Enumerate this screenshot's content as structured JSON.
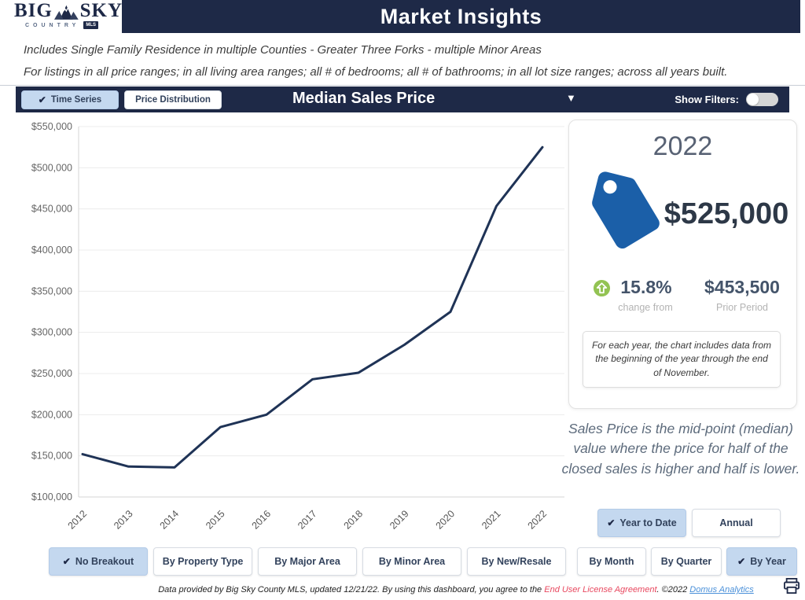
{
  "header": {
    "title": "Market Insights",
    "logo_big": "BIG",
    "logo_sky": "SKY",
    "logo_country": "COUNTRY",
    "logo_mls": "MLS"
  },
  "subtitle": {
    "line1": "Includes Single Family Residence in multiple Counties - Greater Three Forks - multiple Minor Areas",
    "line2": "For listings in all price ranges; in all living area ranges; all # of bedrooms; all # of bathrooms; in all lot size ranges; across all years built."
  },
  "toolbar": {
    "tabs": [
      {
        "label": "Time Series",
        "selected": true
      },
      {
        "label": "Price Distribution",
        "selected": false
      }
    ],
    "metric_title": "Median Sales Price",
    "show_filters_label": "Show Filters:",
    "filters_on": false
  },
  "chart_data": {
    "type": "line",
    "title": "Median Sales Price",
    "x": [
      "2012",
      "2013",
      "2014",
      "2015",
      "2016",
      "2017",
      "2018",
      "2019",
      "2020",
      "2021",
      "2022"
    ],
    "series": [
      {
        "name": "Median Sales Price",
        "values": [
          152000,
          137000,
          136000,
          185000,
          200000,
          243000,
          251000,
          285000,
          325000,
          453500,
          525000
        ]
      }
    ],
    "ylim": [
      100000,
      550000
    ],
    "ytick_step": 50000,
    "xlabel": "",
    "ylabel": "",
    "grid": true,
    "legend": "none",
    "line_color": "#1f3356",
    "grid_color": "#ececec",
    "axis_color": "#d5d5d5",
    "tick_label_color": "#666666"
  },
  "summary_card": {
    "year": "2022",
    "value": "$525,000",
    "change_pct": "15.8%",
    "change_label": "change from",
    "prior_value": "$453,500",
    "prior_label": "Prior Period",
    "note": "For each year, the chart includes data from the beginning of the year through the end of November."
  },
  "description": "Sales Price is the mid-point (median) value where the price for half of the closed sales is higher and half is lower.",
  "period_buttons": [
    {
      "label": "Year to Date",
      "selected": true
    },
    {
      "label": "Annual",
      "selected": false
    }
  ],
  "breakout_buttons": [
    {
      "label": "No Breakout",
      "selected": true
    },
    {
      "label": "By Property Type",
      "selected": false
    },
    {
      "label": "By Major Area",
      "selected": false
    },
    {
      "label": "By Minor Area",
      "selected": false
    },
    {
      "label": "By New/Resale",
      "selected": false
    },
    {
      "label": "By Month",
      "selected": false
    },
    {
      "label": "By Quarter",
      "selected": false
    },
    {
      "label": "By Year",
      "selected": true
    }
  ],
  "footer": {
    "text_before": "Data provided by Big Sky County MLS, updated 12/21/22.  By using this dashboard, you agree to the ",
    "license_link": "End User License Agreement",
    "text_middle": ".  ©2022 ",
    "analytics_link": "Domus Analytics"
  },
  "icons": {
    "check": "✔",
    "dropdown_arrow": "▼"
  },
  "colors": {
    "navy": "#1e2947",
    "selected_button_bg": "#c4d8ef",
    "tag_blue": "#1b5fa8",
    "up_green": "#93c353",
    "line": "#1f3356",
    "license_link": "#e8485f",
    "analytics_link": "#4a90d9"
  }
}
